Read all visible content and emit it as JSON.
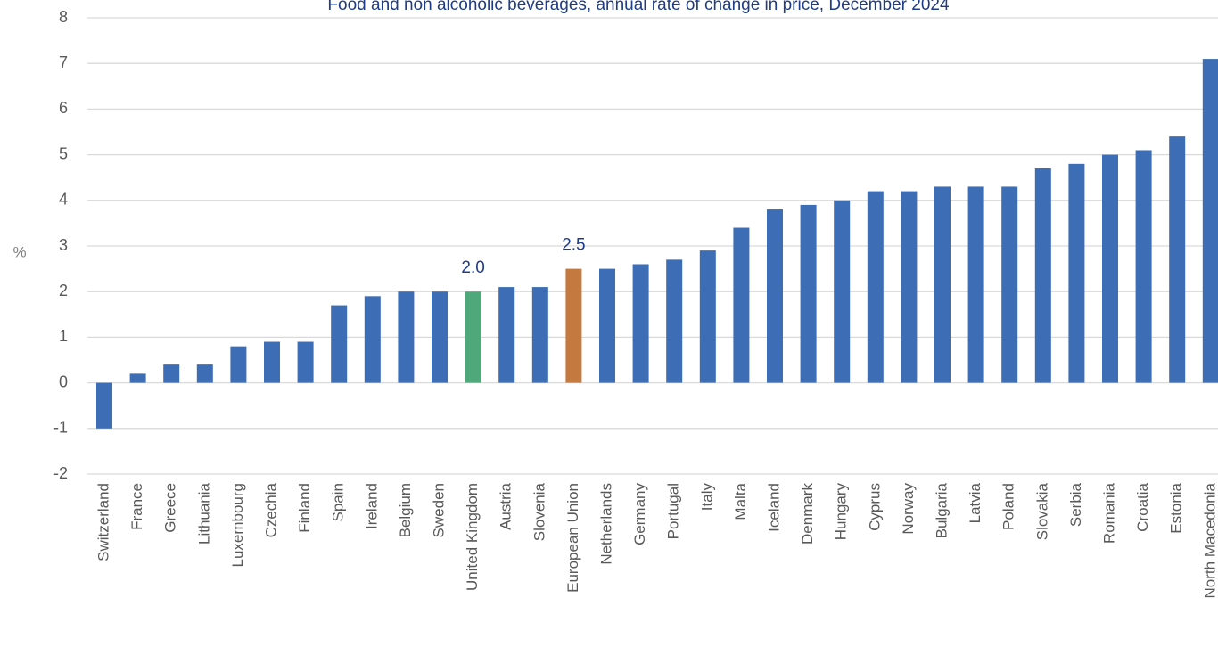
{
  "chart_data": {
    "type": "bar",
    "title": "Food and non alcoholic beverages, annual rate of change in price, December 2024",
    "y_label": "%",
    "categories": [
      "Switzerland",
      "France",
      "Greece",
      "Lithuania",
      "Luxembourg",
      "Czechia",
      "Finland",
      "Spain",
      "Ireland",
      "Belgium",
      "Sweden",
      "United Kingdom",
      "Austria",
      "Slovenia",
      "European Union",
      "Netherlands",
      "Germany",
      "Portugal",
      "Italy",
      "Malta",
      "Iceland",
      "Denmark",
      "Hungary",
      "Cyprus",
      "Norway",
      "Bulgaria",
      "Latvia",
      "Poland",
      "Slovakia",
      "Serbia",
      "Romania",
      "Croatia",
      "Estonia",
      "North Macedonia"
    ],
    "values": [
      -1.0,
      0.2,
      0.4,
      0.4,
      0.8,
      0.9,
      0.9,
      1.7,
      1.9,
      2.0,
      2.0,
      2.0,
      2.1,
      2.1,
      2.5,
      2.5,
      2.6,
      2.7,
      2.9,
      3.4,
      3.8,
      3.9,
      4.0,
      4.2,
      4.2,
      4.3,
      4.3,
      4.3,
      4.7,
      4.8,
      5.0,
      5.1,
      5.4,
      7.1
    ],
    "value_labels": [
      null,
      null,
      null,
      null,
      null,
      null,
      null,
      null,
      null,
      null,
      null,
      "2.0",
      null,
      null,
      "2.5",
      null,
      null,
      null,
      null,
      null,
      null,
      null,
      null,
      null,
      null,
      null,
      null,
      null,
      null,
      null,
      null,
      null,
      null,
      null
    ],
    "colors": [
      "#3d6eb5",
      "#3d6eb5",
      "#3d6eb5",
      "#3d6eb5",
      "#3d6eb5",
      "#3d6eb5",
      "#3d6eb5",
      "#3d6eb5",
      "#3d6eb5",
      "#3d6eb5",
      "#3d6eb5",
      "#4ea87a",
      "#3d6eb5",
      "#3d6eb5",
      "#c47a3f",
      "#3d6eb5",
      "#3d6eb5",
      "#3d6eb5",
      "#3d6eb5",
      "#3d6eb5",
      "#3d6eb5",
      "#3d6eb5",
      "#3d6eb5",
      "#3d6eb5",
      "#3d6eb5",
      "#3d6eb5",
      "#3d6eb5",
      "#3d6eb5",
      "#3d6eb5",
      "#3d6eb5",
      "#3d6eb5",
      "#3d6eb5",
      "#3d6eb5",
      "#3d6eb5"
    ],
    "ylim": [
      -2,
      8
    ],
    "yticks": [
      -2,
      -1,
      0,
      1,
      2,
      3,
      4,
      5,
      6,
      7,
      8
    ],
    "grid": true
  }
}
